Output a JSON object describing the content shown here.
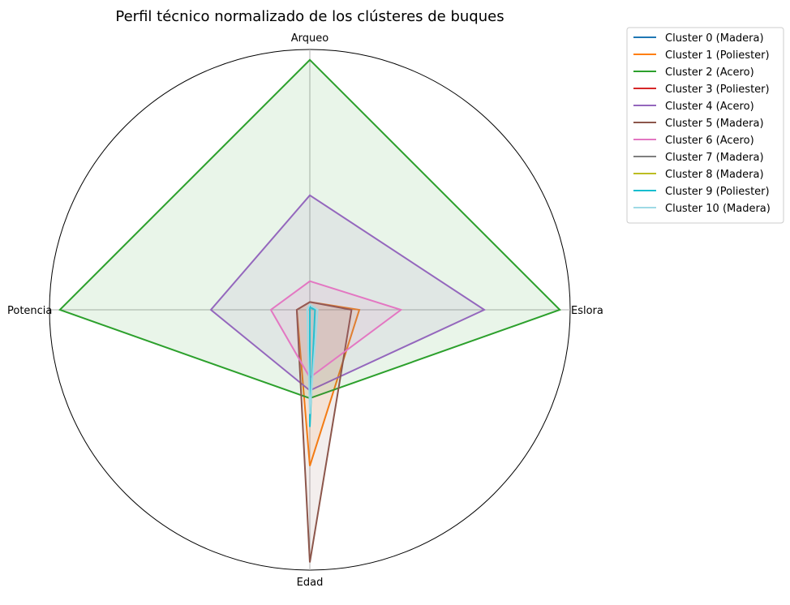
{
  "chart_data": {
    "type": "radar",
    "title": "Perfil técnico normalizado de los clústeres de buques",
    "axes": [
      "Arqueo",
      "Eslora",
      "Edad",
      "Potencia"
    ],
    "range": [
      0,
      1
    ],
    "grid": true,
    "legend_position": "outside-right",
    "series": [
      {
        "name": "Cluster 0 (Madera)",
        "color": "#1f77b4",
        "values": [
          0.02,
          0.0,
          0.14,
          0.0
        ]
      },
      {
        "name": "Cluster 1 (Poliester)",
        "color": "#ff7f0e",
        "values": [
          0.03,
          0.19,
          0.6,
          0.05
        ]
      },
      {
        "name": "Cluster 2 (Acero)",
        "color": "#2ca02c",
        "values": [
          0.96,
          0.96,
          0.34,
          0.96
        ]
      },
      {
        "name": "Cluster 3 (Poliester)",
        "color": "#d62728",
        "values": [
          0.01,
          0.0,
          0.45,
          0.0
        ]
      },
      {
        "name": "Cluster 4 (Acero)",
        "color": "#9467bd",
        "values": [
          0.44,
          0.67,
          0.31,
          0.38
        ]
      },
      {
        "name": "Cluster 5 (Madera)",
        "color": "#8c564b",
        "values": [
          0.03,
          0.16,
          0.97,
          0.05
        ]
      },
      {
        "name": "Cluster 6 (Acero)",
        "color": "#e377c2",
        "values": [
          0.11,
          0.35,
          0.26,
          0.15
        ]
      },
      {
        "name": "Cluster 7 (Madera)",
        "color": "#7f7f7f",
        "values": [
          0.01,
          0.0,
          0.17,
          0.0
        ]
      },
      {
        "name": "Cluster 8 (Madera)",
        "color": "#bcbd22",
        "values": [
          0.01,
          0.0,
          0.35,
          0.0
        ]
      },
      {
        "name": "Cluster 9 (Poliester)",
        "color": "#17becf",
        "values": [
          0.01,
          0.02,
          0.45,
          0.0
        ]
      },
      {
        "name": "Cluster 10 (Madera)",
        "color": "#9edae5",
        "values": [
          0.02,
          0.03,
          0.4,
          0.01
        ]
      }
    ]
  }
}
